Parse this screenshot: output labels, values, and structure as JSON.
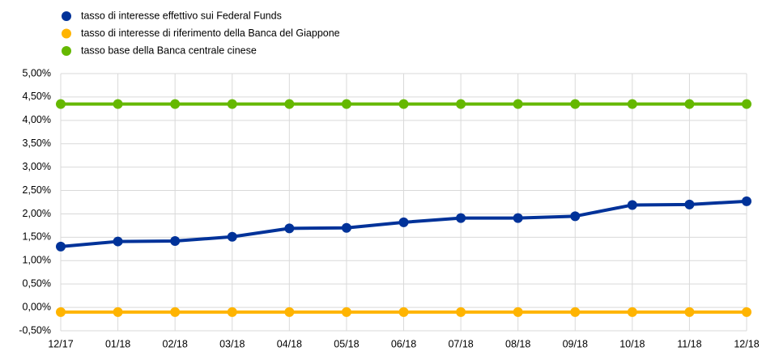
{
  "chart_data": {
    "type": "line",
    "categories": [
      "12/17",
      "01/18",
      "02/18",
      "03/18",
      "04/18",
      "05/18",
      "06/18",
      "07/18",
      "08/18",
      "09/18",
      "10/18",
      "11/18",
      "12/18"
    ],
    "series": [
      {
        "name": "tasso di interesse effettivo sui Federal Funds",
        "color": "#003299",
        "values": [
          1.3,
          1.41,
          1.42,
          1.51,
          1.69,
          1.7,
          1.82,
          1.91,
          1.91,
          1.95,
          2.19,
          2.2,
          2.27
        ]
      },
      {
        "name": "tasso di interesse di riferimento della Banca del Giappone",
        "color": "#ffb400",
        "values": [
          -0.1,
          -0.1,
          -0.1,
          -0.1,
          -0.1,
          -0.1,
          -0.1,
          -0.1,
          -0.1,
          -0.1,
          -0.1,
          -0.1,
          -0.1
        ]
      },
      {
        "name": "tasso base della Banca centrale cinese",
        "color": "#65b800",
        "values": [
          4.35,
          4.35,
          4.35,
          4.35,
          4.35,
          4.35,
          4.35,
          4.35,
          4.35,
          4.35,
          4.35,
          4.35,
          4.35
        ]
      }
    ],
    "ylim": [
      -0.5,
      5.0
    ],
    "yticks": [
      {
        "value": -0.5,
        "label": "-0,50%"
      },
      {
        "value": 0,
        "label": "0,00%"
      },
      {
        "value": 0.5,
        "label": "0,50%"
      },
      {
        "value": 1.0,
        "label": "1,00%"
      },
      {
        "value": 1.5,
        "label": "1,50%"
      },
      {
        "value": 2.0,
        "label": "2,00%"
      },
      {
        "value": 2.5,
        "label": "2,50%"
      },
      {
        "value": 3.0,
        "label": "3,00%"
      },
      {
        "value": 3.5,
        "label": "3,50%"
      },
      {
        "value": 4.0,
        "label": "4,00%"
      },
      {
        "value": 4.5,
        "label": "4,50%"
      },
      {
        "value": 5.0,
        "label": "5,00%"
      }
    ],
    "grid": true,
    "legend": "top-left"
  }
}
